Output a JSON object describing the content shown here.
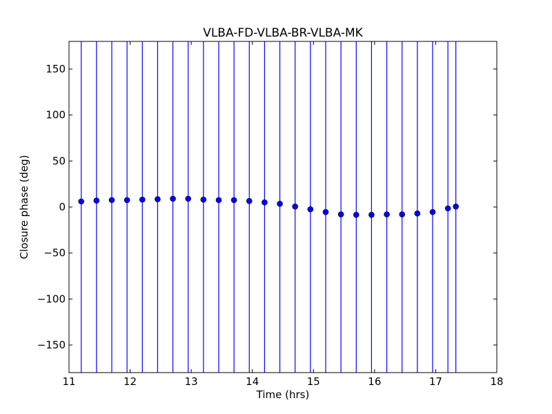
{
  "chart_data": {
    "type": "scatter",
    "title": "VLBA-FD-VLBA-BR-VLBA-MK",
    "xlabel": "Time (hrs)",
    "ylabel": "Closure phase (deg)",
    "xlim": [
      11,
      18
    ],
    "ylim": [
      -180,
      180
    ],
    "xticks": [
      11,
      12,
      13,
      14,
      15,
      16,
      17,
      18
    ],
    "yticks": [
      -150,
      -100,
      -50,
      0,
      50,
      100,
      150
    ],
    "xtick_labels": [
      "11",
      "12",
      "13",
      "14",
      "15",
      "16",
      "17",
      "18"
    ],
    "ytick_labels": [
      "−150",
      "−100",
      "−50",
      "0",
      "50",
      "100",
      "150"
    ],
    "grid": false,
    "marker_color": "#0000ff",
    "error_bar_color": "#0000ff",
    "series": [
      {
        "x": [
          11.2,
          11.45,
          11.7,
          11.95,
          12.2,
          12.45,
          12.7,
          12.95,
          13.2,
          13.45,
          13.7,
          13.95,
          14.2,
          14.45,
          14.7,
          14.95,
          15.2,
          15.45,
          15.7,
          15.95,
          16.2,
          16.45,
          16.7,
          16.95,
          17.2,
          17.33
        ],
        "y": [
          6,
          7,
          7.5,
          7.5,
          8,
          8.5,
          9,
          9,
          8,
          7.5,
          7.5,
          6.5,
          5,
          3.5,
          0.5,
          -2.5,
          -5.5,
          -8,
          -8.5,
          -8.5,
          -8,
          -8,
          -7,
          -5.5,
          -1.5,
          0.5
        ],
        "err_low": [
          -180,
          -180,
          -180,
          -180,
          -180,
          -180,
          -180,
          -180,
          -180,
          -180,
          -180,
          -180,
          -180,
          -180,
          -180,
          -180,
          -180,
          -180,
          -180,
          -180,
          -180,
          -180,
          -180,
          -180,
          -180,
          -180
        ],
        "err_high": [
          180,
          180,
          180,
          180,
          180,
          180,
          180,
          180,
          180,
          180,
          180,
          180,
          180,
          180,
          180,
          180,
          180,
          180,
          180,
          180,
          180,
          180,
          180,
          180,
          180,
          180
        ]
      }
    ]
  }
}
